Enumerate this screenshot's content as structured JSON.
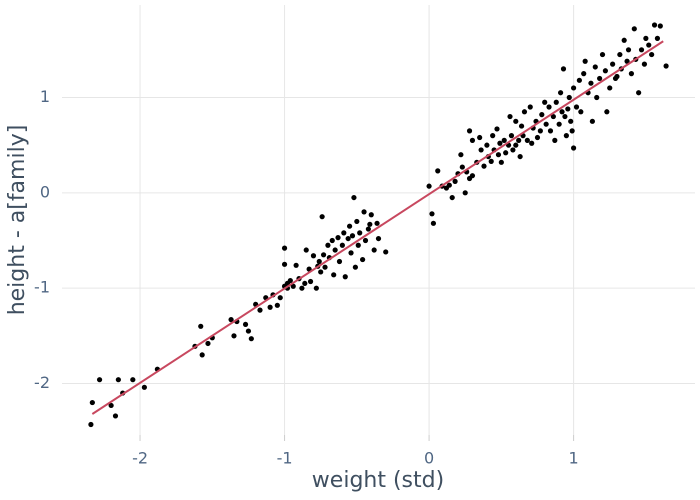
{
  "chart_data": {
    "type": "scatter",
    "x_label": "weight (std)",
    "y_label": "height - a[family]",
    "xlim": [
      -2.54,
      1.84
    ],
    "ylim": [
      -2.54,
      1.97
    ],
    "xticks": [
      -2,
      -1,
      0,
      1
    ],
    "yticks": [
      -2,
      -1,
      0,
      1
    ],
    "grid": true,
    "series": [
      {
        "mode": "markers",
        "color": "#000000",
        "x": [
          -2.34,
          -2.33,
          -2.28,
          -2.2,
          -2.17,
          -2.15,
          -2.12,
          -2.05,
          -1.97,
          -1.88,
          -1.62,
          -1.58,
          -1.57,
          -1.53,
          -1.5,
          -1.37,
          -1.35,
          -1.33,
          -1.27,
          -1.25,
          -1.23,
          -1.2,
          -1.17,
          -1.13,
          -1.1,
          -1.08,
          -1.05,
          -1.03,
          -1.0,
          -0.98,
          -1.0,
          -0.98,
          -0.96,
          -0.94,
          -0.92,
          -0.9,
          -0.88,
          -0.86,
          -0.85,
          -0.83,
          -0.82,
          -0.8,
          -0.78,
          -0.76,
          -0.75,
          -0.73,
          -0.72,
          -0.7,
          -0.69,
          -0.67,
          -0.66,
          -0.65,
          -0.63,
          -0.62,
          -0.6,
          -0.59,
          -0.58,
          -0.56,
          -0.55,
          -0.54,
          -0.53,
          -0.52,
          -0.51,
          -0.5,
          -0.49,
          -0.48,
          -0.46,
          -0.45,
          -0.44,
          -0.42,
          -0.41,
          -0.4,
          -0.38,
          -0.36,
          -0.35,
          -0.3,
          -1.0,
          -0.74,
          -0.77,
          0.0,
          0.02,
          0.03,
          0.06,
          0.09,
          0.12,
          0.14,
          0.16,
          0.18,
          0.2,
          0.22,
          0.23,
          0.25,
          0.26,
          0.28,
          0.28,
          0.3,
          0.3,
          0.33,
          0.35,
          0.36,
          0.38,
          0.4,
          0.41,
          0.43,
          0.44,
          0.45,
          0.47,
          0.48,
          0.49,
          0.5,
          0.52,
          0.53,
          0.55,
          0.56,
          0.57,
          0.58,
          0.6,
          0.6,
          0.62,
          0.63,
          0.64,
          0.65,
          0.66,
          0.68,
          0.7,
          0.71,
          0.72,
          0.74,
          0.75,
          0.77,
          0.78,
          0.8,
          0.81,
          0.83,
          0.84,
          0.86,
          0.87,
          0.88,
          0.9,
          0.91,
          0.92,
          0.93,
          0.94,
          0.95,
          0.96,
          0.97,
          0.98,
          0.99,
          1.0,
          1.0,
          1.02,
          1.04,
          1.05,
          1.07,
          1.08,
          1.1,
          1.12,
          1.13,
          1.15,
          1.16,
          1.18,
          1.2,
          1.22,
          1.23,
          1.25,
          1.27,
          1.29,
          1.3,
          1.32,
          1.33,
          1.35,
          1.37,
          1.38,
          1.4,
          1.42,
          1.43,
          1.45,
          1.47,
          1.49,
          1.5,
          1.52,
          1.54,
          1.56,
          1.58,
          1.6,
          1.64
        ],
        "y": [
          -2.43,
          -2.2,
          -1.96,
          -2.23,
          -2.34,
          -1.96,
          -2.1,
          -1.96,
          -2.04,
          -1.85,
          -1.61,
          -1.4,
          -1.7,
          -1.58,
          -1.52,
          -1.33,
          -1.5,
          -1.35,
          -1.38,
          -1.45,
          -1.53,
          -1.17,
          -1.23,
          -1.1,
          -1.2,
          -1.07,
          -1.18,
          -1.1,
          -0.98,
          -0.95,
          -0.75,
          -1.0,
          -0.92,
          -0.98,
          -0.76,
          -0.9,
          -1.0,
          -0.95,
          -0.6,
          -0.8,
          -0.93,
          -0.66,
          -1.0,
          -0.72,
          -0.83,
          -0.65,
          -0.78,
          -0.55,
          -0.68,
          -0.5,
          -0.86,
          -0.6,
          -0.47,
          -0.72,
          -0.55,
          -0.42,
          -0.88,
          -0.48,
          -0.35,
          -0.63,
          -0.45,
          -0.05,
          -0.78,
          -0.3,
          -0.55,
          -0.42,
          -0.7,
          -0.2,
          -0.5,
          -0.38,
          -0.33,
          -0.23,
          -0.6,
          -0.32,
          -0.48,
          -0.62,
          -0.58,
          -0.25,
          -0.77,
          0.07,
          -0.22,
          -0.32,
          0.23,
          0.07,
          0.05,
          0.08,
          -0.05,
          0.12,
          0.2,
          0.4,
          0.27,
          0.0,
          0.22,
          0.15,
          0.65,
          0.18,
          0.55,
          0.32,
          0.58,
          0.45,
          0.28,
          0.5,
          0.38,
          0.33,
          0.6,
          0.45,
          0.67,
          0.4,
          0.52,
          0.32,
          0.55,
          0.42,
          0.5,
          0.8,
          0.6,
          0.45,
          0.75,
          0.5,
          0.55,
          0.38,
          0.7,
          0.6,
          0.85,
          0.55,
          0.9,
          0.52,
          0.68,
          0.75,
          0.58,
          0.65,
          0.82,
          0.95,
          0.72,
          0.9,
          0.65,
          0.8,
          0.55,
          0.95,
          0.72,
          1.05,
          0.85,
          1.3,
          0.8,
          0.6,
          0.88,
          1.0,
          0.75,
          0.65,
          0.47,
          1.1,
          0.9,
          1.18,
          0.85,
          1.25,
          1.38,
          1.05,
          1.15,
          0.75,
          1.32,
          1.0,
          1.2,
          1.45,
          1.28,
          0.85,
          1.1,
          1.35,
          1.2,
          1.22,
          1.45,
          1.3,
          1.6,
          1.38,
          1.5,
          1.25,
          1.72,
          1.4,
          1.05,
          1.5,
          1.35,
          1.62,
          1.55,
          1.45,
          1.76,
          1.62,
          1.75,
          1.33
        ]
      },
      {
        "mode": "lines",
        "color": "#c8485f",
        "x": [
          -2.33,
          1.62
        ],
        "y": [
          -2.32,
          1.59
        ]
      }
    ]
  }
}
